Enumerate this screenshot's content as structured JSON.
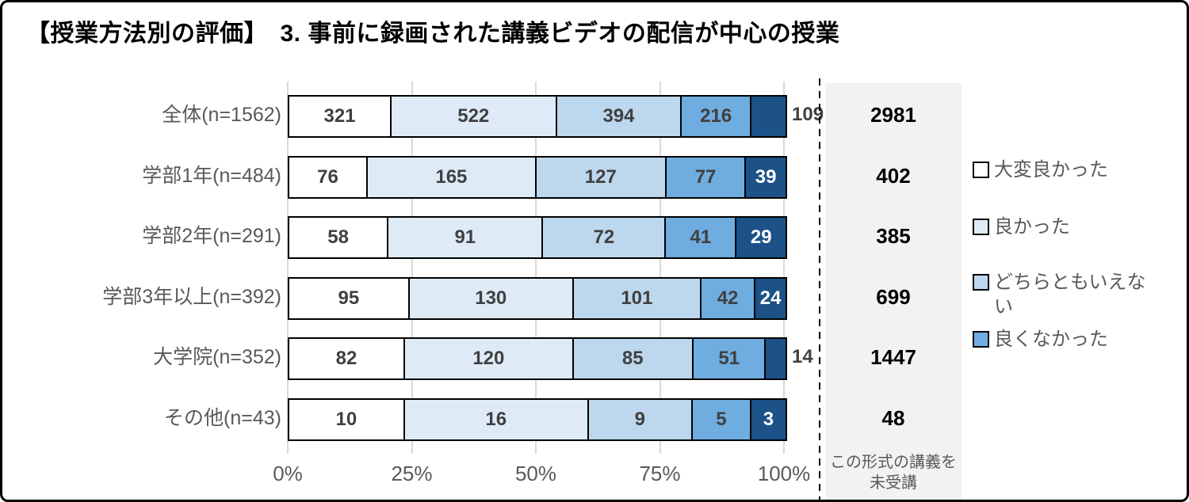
{
  "title": "【授業方法別の評価】　3. 事前に録画された講義ビデオの配信が中心の授業",
  "chart_data": {
    "type": "bar",
    "variant": "horizontal-100pct-stacked",
    "categories": [
      "全体(n=1562)",
      "学部1年(n=484)",
      "学部2年(n=291)",
      "学部3年以上(n=392)",
      "大学院(n=352)",
      "その他(n=43)"
    ],
    "series": [
      {
        "name": "大変良かった",
        "color": "#FFFFFF",
        "values": [
          321,
          76,
          58,
          95,
          82,
          10
        ]
      },
      {
        "name": "良かった",
        "color": "#DEEBF7",
        "values": [
          522,
          165,
          91,
          130,
          120,
          16
        ]
      },
      {
        "name": "どちらともいえない",
        "color": "#BDD7EE",
        "values": [
          394,
          127,
          72,
          101,
          85,
          9
        ]
      },
      {
        "name": "良くなかった",
        "color": "#6FACE0",
        "values": [
          216,
          77,
          41,
          42,
          51,
          5
        ]
      },
      {
        "name": "",
        "color": "#1C5288",
        "values": [
          109,
          39,
          29,
          24,
          14,
          3
        ]
      }
    ],
    "x_ticks": [
      "0%",
      "25%",
      "50%",
      "75%",
      "100%"
    ],
    "grid": true,
    "legend_position": "right",
    "legend": [
      {
        "label": "大変良かった",
        "color": "#FFFFFF"
      },
      {
        "label": "良かった",
        "color": "#DEEBF7"
      },
      {
        "label": "どちらともいえない",
        "color": "#BDD7EE"
      },
      {
        "label": "良くなかった",
        "color": "#6FACE0"
      }
    ],
    "not_attended_column": {
      "header": "この形式の講義を未受講",
      "values": [
        2981,
        402,
        385,
        699,
        1447,
        48
      ]
    }
  },
  "colors": {
    "grid_line": "#D9D9D9",
    "bar_border": "#000000",
    "value_label": "#404040",
    "value_label_on_dark": "#FFFFFF",
    "axis_label": "#595959",
    "na_background": "#F2F2F2",
    "frame_border": "#000000"
  }
}
